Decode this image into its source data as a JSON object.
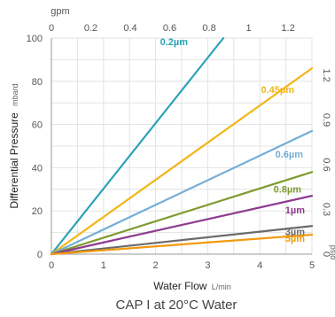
{
  "chart_data": {
    "type": "line",
    "title": "CAP I at 20°C Water",
    "xlabel": "Water Flow",
    "xlabel_unit": "L/min",
    "ylabel": "Differential Pressure",
    "ylabel_unit": "mbard",
    "x2label": "gpm",
    "y2label": "psid",
    "xlim": [
      0,
      5
    ],
    "ylim": [
      0,
      100
    ],
    "x_ticks": [
      "0",
      "1",
      "2",
      "3",
      "4",
      "5"
    ],
    "y_ticks": [
      "0",
      "20",
      "40",
      "60",
      "80",
      "100"
    ],
    "x2_ticks": [
      "0",
      "0.2",
      "0.4",
      "0.6",
      "0.8",
      "1",
      "1.2"
    ],
    "x2_tick_values": [
      0,
      0.2,
      0.4,
      0.6,
      0.8,
      1,
      1.2
    ],
    "y2_ticks": [
      "0",
      "0.3",
      "0.6",
      "0.9",
      "1.2"
    ],
    "y2_tick_values": [
      0,
      0.3,
      0.6,
      0.9,
      1.2
    ],
    "grid": true,
    "series": [
      {
        "name": "0.2µm",
        "label_text": "0.2µm",
        "color": "#2aa3b7",
        "x": [
          0,
          3.3
        ],
        "y": [
          0,
          100
        ]
      },
      {
        "name": "0.45µm",
        "label_text": "0.45µm",
        "color": "#f2b619",
        "x": [
          0,
          5
        ],
        "y": [
          0,
          86
        ]
      },
      {
        "name": "0.6µm",
        "label_text": "0.6µm",
        "color": "#74aed6",
        "x": [
          0,
          5
        ],
        "y": [
          0,
          57
        ]
      },
      {
        "name": "0.8µm",
        "label_text": "0.8µm",
        "color": "#7f9b2e",
        "x": [
          0,
          5
        ],
        "y": [
          0,
          38
        ]
      },
      {
        "name": "1µm",
        "label_text": "1µm",
        "color": "#8e3b8f",
        "x": [
          0,
          5
        ],
        "y": [
          0,
          27
        ]
      },
      {
        "name": "3µm",
        "label_text": "3µm",
        "color": "#6b6b6b",
        "x": [
          0,
          5
        ],
        "y": [
          0,
          13
        ]
      },
      {
        "name": "5µm",
        "label_text": "5µm",
        "color": "#f29a0d",
        "x": [
          0,
          5
        ],
        "y": [
          0,
          9
        ]
      }
    ]
  }
}
